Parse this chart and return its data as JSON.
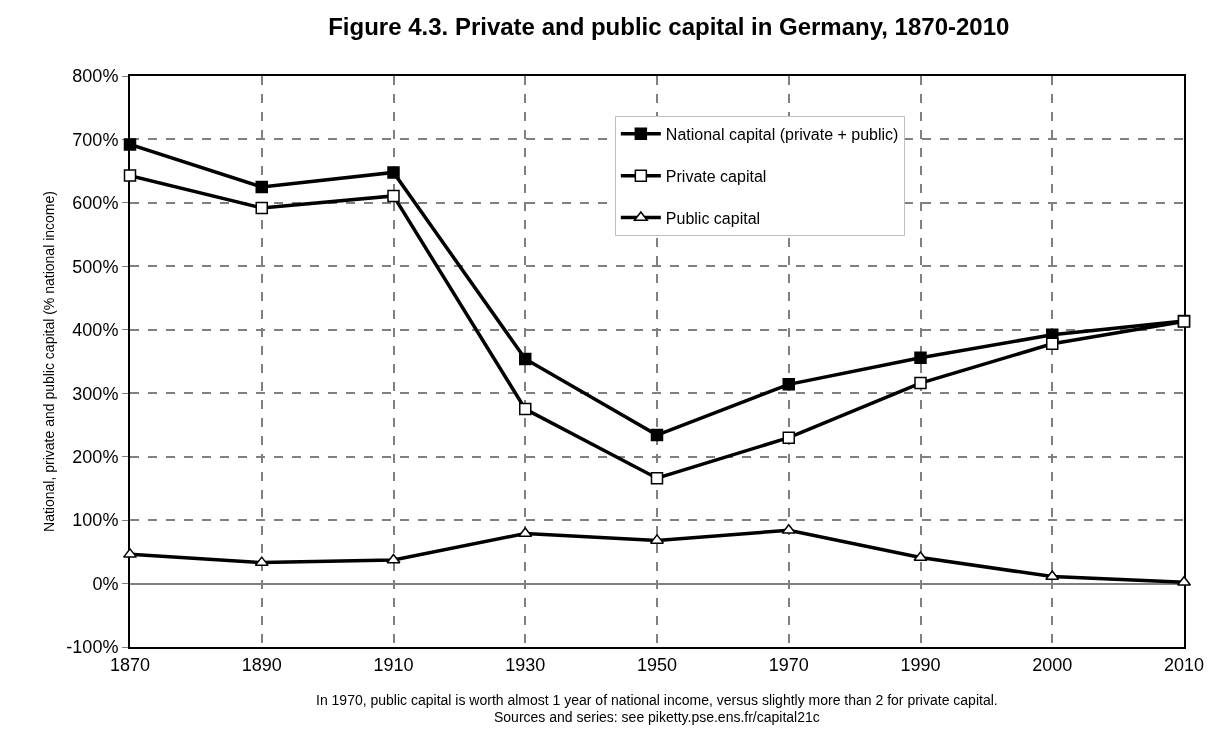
{
  "chart_data": {
    "type": "line",
    "title": "Figure 4.3. Private and public capital in Germany, 1870-2010",
    "ylabel": "National, private and public capital (% national income)",
    "categories": [
      "1870",
      "1890",
      "1910",
      "1930",
      "1950",
      "1970",
      "1990",
      "2000",
      "2010"
    ],
    "series": [
      {
        "name": "National capital (private + public)",
        "color": "#000000",
        "marker": "square",
        "values": [
          692,
          625,
          648,
          354,
          234,
          314,
          356,
          392,
          414
        ]
      },
      {
        "name": "Private capital",
        "color": "#ffffff",
        "marker": "square",
        "values": [
          643,
          592,
          611,
          275,
          166,
          230,
          316,
          378,
          413
        ]
      },
      {
        "name": "Public capital",
        "color": "#ffffff",
        "marker": "triangle",
        "values": [
          46,
          33,
          37,
          79,
          68,
          84,
          41,
          11,
          2
        ]
      }
    ],
    "ylim": [
      -100,
      800
    ],
    "yticks": [
      {
        "value": -100,
        "label": "-100%"
      },
      {
        "value": 0,
        "label": "0%"
      },
      {
        "value": 100,
        "label": "100%"
      },
      {
        "value": 200,
        "label": "200%"
      },
      {
        "value": 300,
        "label": "300%"
      },
      {
        "value": 400,
        "label": "400%"
      },
      {
        "value": 500,
        "label": "500%"
      },
      {
        "value": 600,
        "label": "600%"
      },
      {
        "value": 700,
        "label": "700%"
      },
      {
        "value": 800,
        "label": "800%"
      }
    ],
    "grid": true,
    "legend": "top",
    "line_style": "solid",
    "annotations": [
      "In 1970, public capital is worth almost 1 year of national income, versus slightly more than 2 for private capital.",
      "Sources and series: see piketty.pse.ens.fr/capital21c"
    ]
  }
}
